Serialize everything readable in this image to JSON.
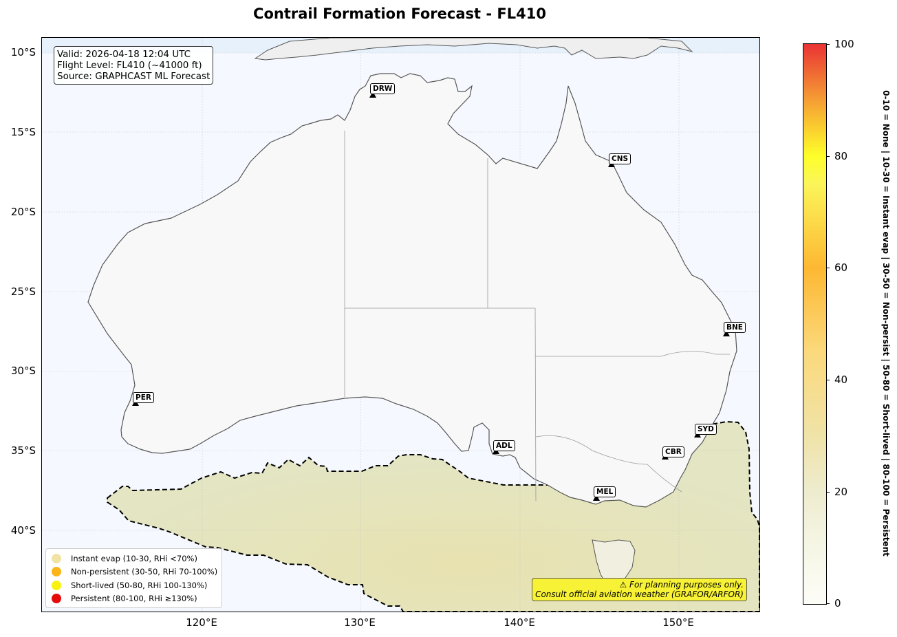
{
  "title": "Contrail Formation Forecast - FL410",
  "info": {
    "valid": "Valid: 2026-04-18 12:04 UTC",
    "flight_level": "Flight Level: FL410 (~41000 ft)",
    "source": "Source: GRAPHCAST ML Forecast"
  },
  "axes": {
    "y_ticks": [
      "10°S",
      "15°S",
      "20°S",
      "25°S",
      "30°S",
      "35°S",
      "40°S"
    ],
    "x_ticks": [
      "120°E",
      "130°E",
      "140°E",
      "150°E"
    ]
  },
  "cities": [
    {
      "code": "DRW"
    },
    {
      "code": "CNS"
    },
    {
      "code": "BNE"
    },
    {
      "code": "PER"
    },
    {
      "code": "SYD"
    },
    {
      "code": "ADL"
    },
    {
      "code": "CBR"
    },
    {
      "code": "MEL"
    }
  ],
  "legend": [
    {
      "label": "Instant evap (10-30, RHi <70%)",
      "color": "#f1e3a3"
    },
    {
      "label": "Non-persistent (30-50, RHi 70-100%)",
      "color": "#fbb516"
    },
    {
      "label": "Short-lived (50-80, RHi 100-130%)",
      "color": "#f8f212"
    },
    {
      "label": "Persistent (80-100, RHi ≥130%)",
      "color": "#e60b0b"
    }
  ],
  "warning": {
    "line1": "⚠ For planning purposes only.",
    "line2": "Consult official aviation weather (GRAFOR/ARFOR)"
  },
  "colorbar": {
    "ticks": [
      "0",
      "20",
      "40",
      "60",
      "80",
      "100"
    ],
    "label": "0-10 = None  |  10-30 = Instant evap  |  30-50 = Non-persist  |  50-80 = Short-lived  |  80-100 = Persistent"
  }
}
